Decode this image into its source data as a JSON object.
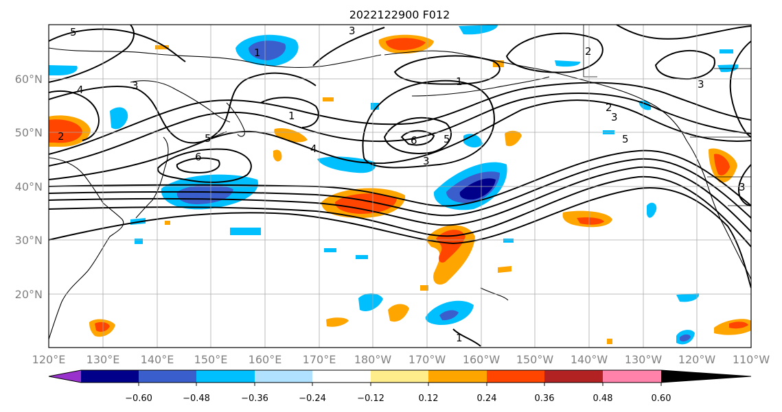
{
  "title": "2022122900 F012",
  "lat_ticks": [
    "60°N",
    "50°N",
    "40°N",
    "30°N",
    "20°N"
  ],
  "lon_ticks": [
    "120°E",
    "130°E",
    "140°E",
    "150°E",
    "160°E",
    "170°E",
    "180°W",
    "170°W",
    "160°W",
    "150°W",
    "140°W",
    "130°W",
    "120°W",
    "110°W"
  ],
  "colorbar": {
    "labels": [
      "−0.60",
      "−0.48",
      "−0.36",
      "−0.24",
      "−0.12",
      "0.12",
      "0.24",
      "0.36",
      "0.48",
      "0.60"
    ],
    "colors": [
      "#9932cc",
      "#00008b",
      "#3a5fcd",
      "#00bfff",
      "#b0e2ff",
      "#ffffff",
      "#ffec8b",
      "#ffa500",
      "#ff4500",
      "#b22222",
      "#ff82ab"
    ]
  },
  "contour_labels": [
    "5",
    "4",
    "3",
    "2",
    "1",
    "5",
    "6",
    "4",
    "1",
    "3",
    "6",
    "5",
    "3",
    "2",
    "3",
    "5",
    "3",
    "3",
    "2",
    "1",
    "1"
  ]
}
